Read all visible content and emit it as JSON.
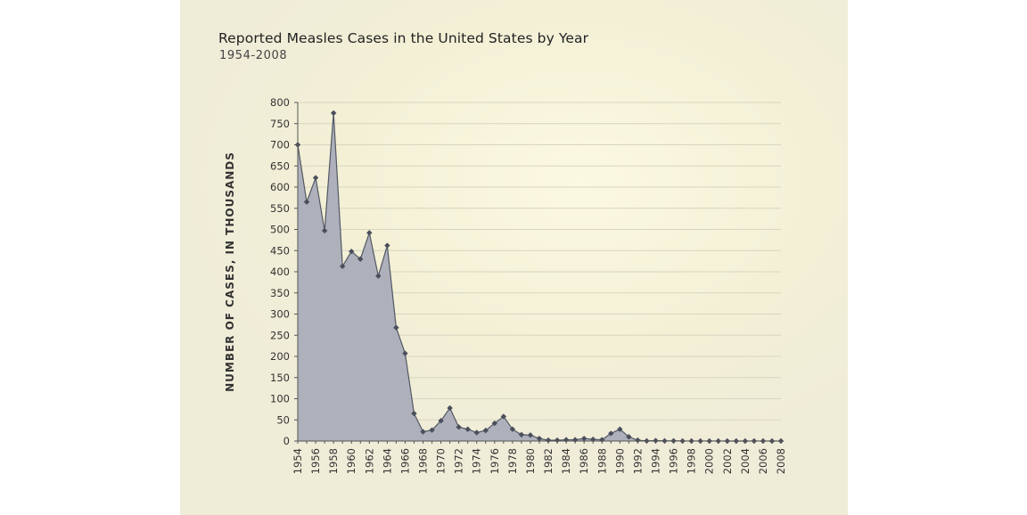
{
  "chart_data": {
    "type": "area",
    "title": "Reported Measles Cases in the United States by Year",
    "subtitle": "1954-2008",
    "ylabel": "NUMBER OF CASES, IN THOUSANDS",
    "xlabel": "",
    "ylim": [
      0,
      800
    ],
    "xlim": [
      1954,
      2008
    ],
    "yticks": [
      0,
      50,
      100,
      150,
      200,
      250,
      300,
      350,
      400,
      450,
      500,
      550,
      600,
      650,
      700,
      750,
      800
    ],
    "xticks": [
      1954,
      1956,
      1958,
      1960,
      1962,
      1964,
      1966,
      1968,
      1970,
      1972,
      1974,
      1976,
      1978,
      1980,
      1982,
      1984,
      1986,
      1988,
      1990,
      1992,
      1994,
      1996,
      1998,
      2000,
      2002,
      2004,
      2006,
      2008
    ],
    "grid": true,
    "x": [
      1954,
      1955,
      1956,
      1957,
      1958,
      1959,
      1960,
      1961,
      1962,
      1963,
      1964,
      1965,
      1966,
      1967,
      1968,
      1969,
      1970,
      1971,
      1972,
      1973,
      1974,
      1975,
      1976,
      1977,
      1978,
      1979,
      1980,
      1981,
      1982,
      1983,
      1984,
      1985,
      1986,
      1987,
      1988,
      1989,
      1990,
      1991,
      1992,
      1993,
      1994,
      1995,
      1996,
      1997,
      1998,
      1999,
      2000,
      2001,
      2002,
      2003,
      2004,
      2005,
      2006,
      2007,
      2008
    ],
    "values": [
      700,
      565,
      622,
      497,
      775,
      413,
      448,
      430,
      492,
      390,
      462,
      268,
      207,
      65,
      22,
      26,
      48,
      78,
      33,
      28,
      20,
      25,
      42,
      58,
      28,
      15,
      14,
      6,
      2,
      2,
      3,
      3,
      6,
      4,
      3,
      18,
      28,
      10,
      2,
      0.3,
      1,
      0.3,
      0.5,
      0.1,
      0.1,
      0.1,
      0.1,
      0.1,
      0,
      0,
      0,
      0.1,
      0.1,
      0,
      0.1
    ],
    "colors": {
      "fill": "#aeb1bb",
      "line": "#535864",
      "marker": "#4a4f5b",
      "grid": "#d8d5c0",
      "axis": "#555555"
    }
  }
}
